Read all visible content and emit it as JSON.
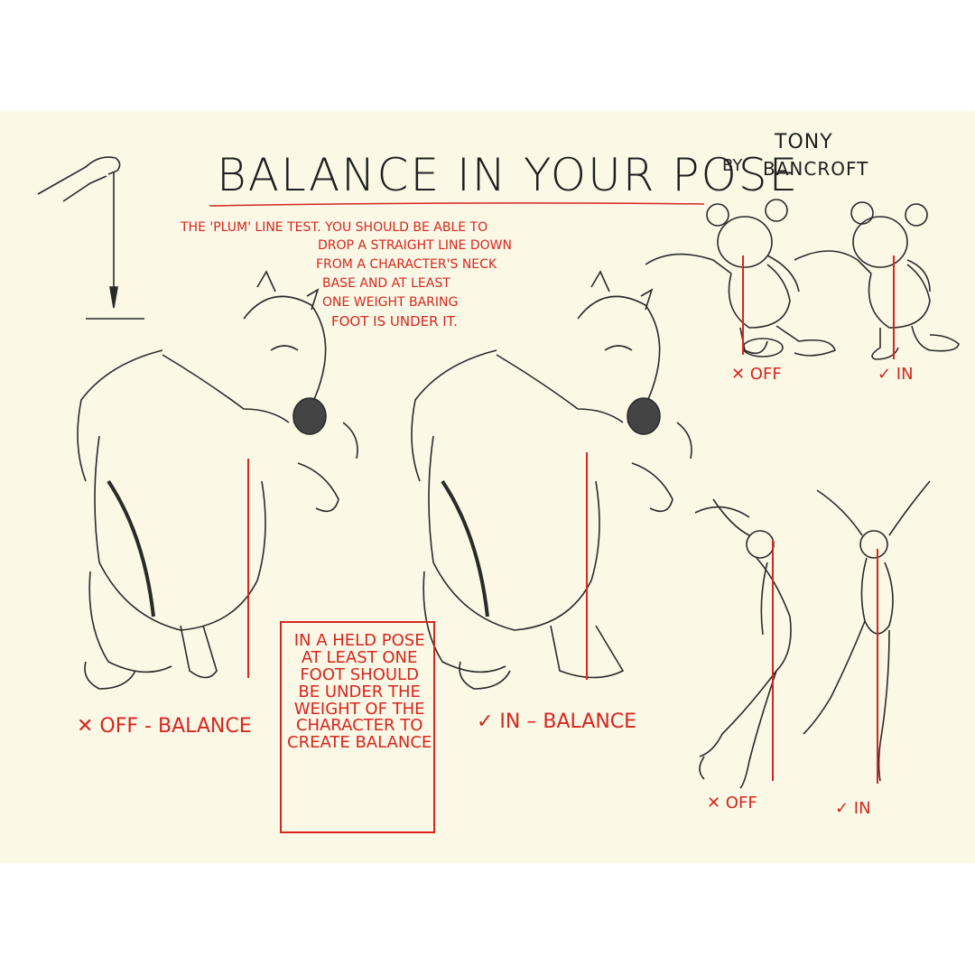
{
  "title": "BALANCE IN YOUR POSE",
  "byline": {
    "by": "BY",
    "author_first": "TONY",
    "author_last": "BANCROFT"
  },
  "plumb_note": {
    "line1": "THE 'PLUM' LINE TEST. YOU SHOULD BE ABLE TO",
    "line2": "DROP A STRAIGHT LINE DOWN",
    "line3": "FROM A CHARACTER'S NECK",
    "line4": "BASE AND AT LEAST",
    "line5": "ONE WEIGHT BARING",
    "line6": "FOOT IS UNDER IT."
  },
  "held_pose_note": "IN A HELD POSE\nAT LEAST ONE\nFOOT SHOULD\nBE UNDER THE\nWEIGHT OF THE\nCHARACTER TO\nCREATE BALANCE",
  "labels": {
    "bear_off": "✕ OFF - BALANCE",
    "bear_in": "✓ IN – BALANCE",
    "mouse_off": "✕ OFF",
    "mouse_in": "✓ IN",
    "dancer_off": "✕ OFF",
    "dancer_in": "✓ IN"
  },
  "colors": {
    "paper": "#fbf8e6",
    "ink": "#1e1e1e",
    "red_ink": "#d7261f"
  },
  "illustrations": [
    "plumb-bob-hand-icon",
    "bear-off-balance-sketch",
    "bear-in-balance-sketch",
    "mouse-off-sketch",
    "mouse-in-sketch",
    "dancer-off-sketch",
    "dancer-in-sketch"
  ]
}
